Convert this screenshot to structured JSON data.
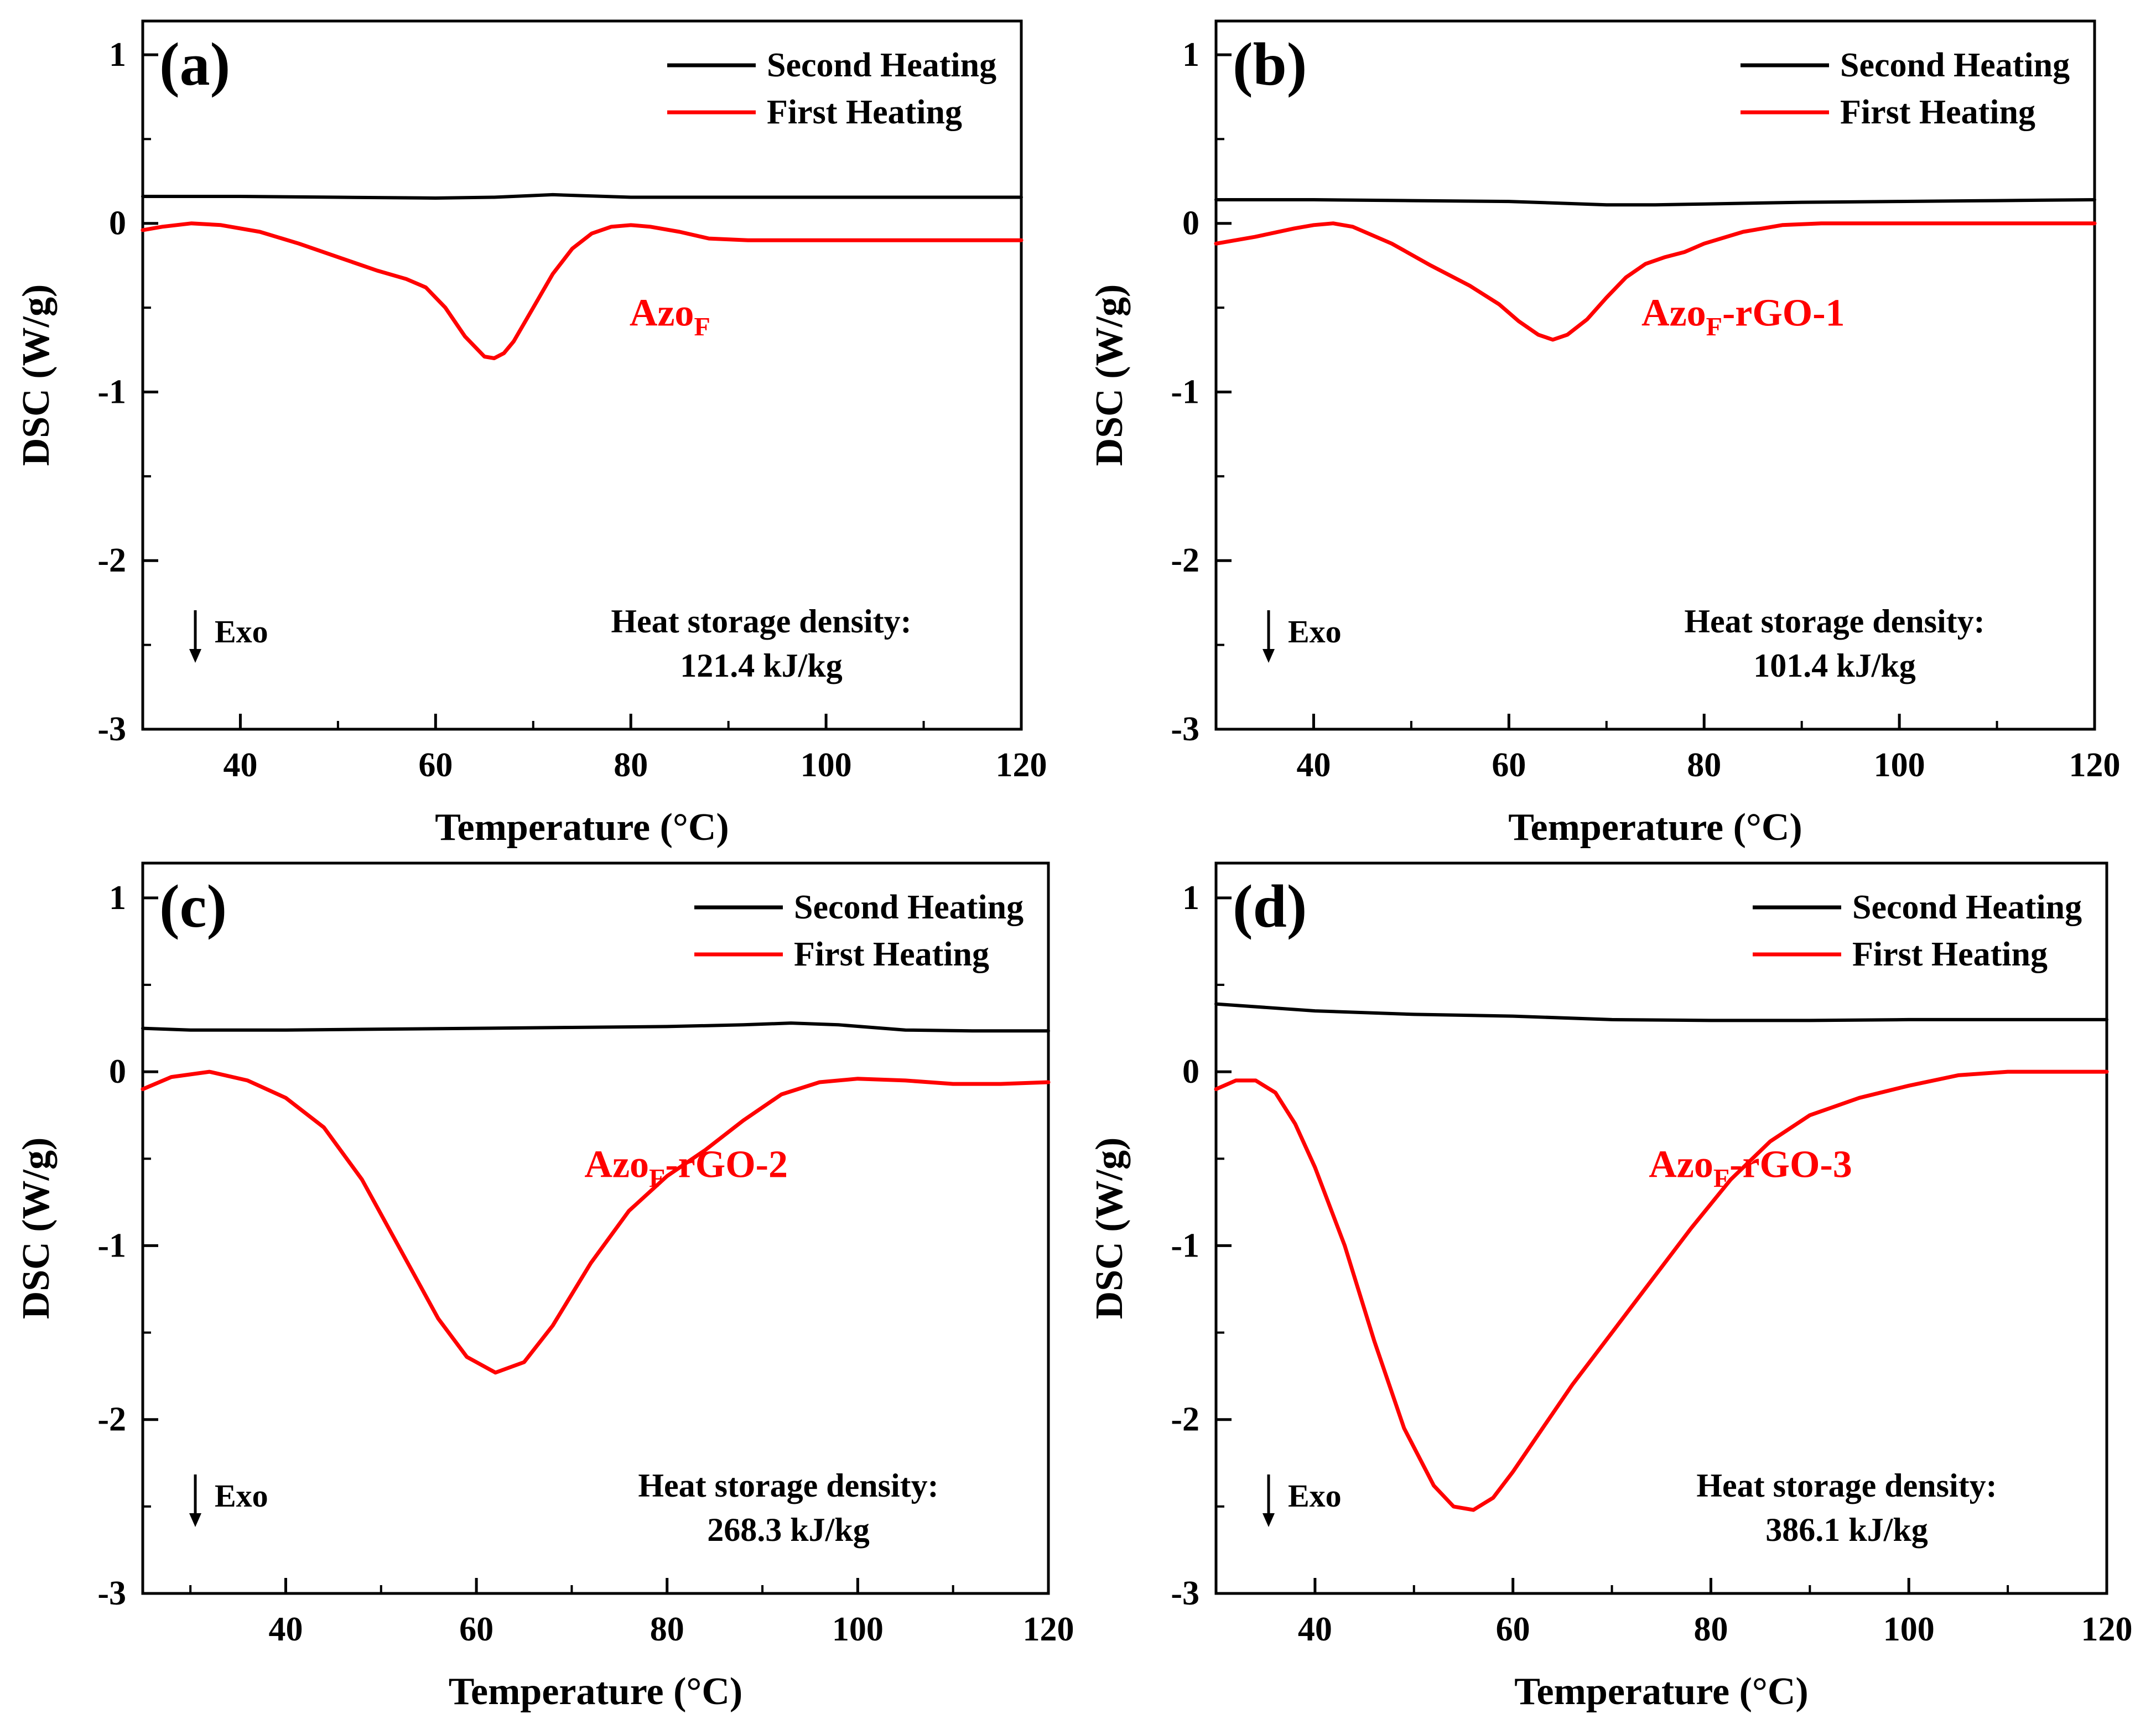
{
  "figure": {
    "description_label": "Four-panel DSC thermogram figure"
  },
  "colors": {
    "second_heating": "#000000",
    "first_heating": "#ff0000",
    "axes": "#000000",
    "sample_label": "#ff0000"
  },
  "chart_data": [
    {
      "type": "line",
      "panel": "(a)",
      "xlabel": "Temperature (°C)",
      "ylabel": "DSC (W/g)",
      "xlim": [
        30,
        120
      ],
      "ylim": [
        -3,
        1.2
      ],
      "xticks": [
        40,
        60,
        80,
        100,
        120
      ],
      "yticks": [
        1,
        0,
        -1,
        -2,
        -3
      ],
      "legend": [
        "Second Heating",
        "First Heating"
      ],
      "sample_label": {
        "base": "Azo",
        "sub": "F",
        "suffix": ""
      },
      "exo_label": "Exo",
      "annotation": {
        "line1": "Heat storage density:",
        "line2": "121.4 kJ/kg"
      },
      "series": [
        {
          "name": "Second Heating",
          "x": [
            30,
            40,
            50,
            60,
            66,
            72,
            80,
            90,
            100,
            110,
            120
          ],
          "y": [
            0.16,
            0.16,
            0.155,
            0.15,
            0.155,
            0.17,
            0.155,
            0.155,
            0.155,
            0.155,
            0.155
          ]
        },
        {
          "name": "First Heating",
          "x": [
            30,
            32,
            35,
            38,
            42,
            46,
            50,
            54,
            57,
            59,
            61,
            63,
            65,
            66,
            67,
            68,
            70,
            72,
            74,
            76,
            78,
            80,
            82,
            85,
            88,
            92,
            100,
            110,
            120
          ],
          "y": [
            -0.04,
            -0.02,
            0.0,
            -0.01,
            -0.05,
            -0.12,
            -0.2,
            -0.28,
            -0.33,
            -0.38,
            -0.5,
            -0.67,
            -0.79,
            -0.8,
            -0.77,
            -0.7,
            -0.5,
            -0.3,
            -0.15,
            -0.06,
            -0.02,
            -0.01,
            -0.02,
            -0.05,
            -0.09,
            -0.1,
            -0.1,
            -0.1,
            -0.1
          ]
        }
      ]
    },
    {
      "type": "line",
      "panel": "(b)",
      "xlabel": "Temperature (°C)",
      "ylabel": "DSC (W/g)",
      "xlim": [
        30,
        120
      ],
      "ylim": [
        -3,
        1.2
      ],
      "xticks": [
        40,
        60,
        80,
        100,
        120
      ],
      "yticks": [
        1,
        0,
        -1,
        -2,
        -3
      ],
      "legend": [
        "Second Heating",
        "First Heating"
      ],
      "sample_label": {
        "base": "Azo",
        "sub": "F",
        "suffix": "-rGO-1"
      },
      "exo_label": "Exo",
      "annotation": {
        "line1": "Heat storage density:",
        "line2": "101.4 kJ/kg"
      },
      "series": [
        {
          "name": "Second Heating",
          "x": [
            30,
            40,
            50,
            60,
            65,
            70,
            75,
            80,
            90,
            100,
            110,
            120
          ],
          "y": [
            0.14,
            0.14,
            0.135,
            0.13,
            0.12,
            0.11,
            0.11,
            0.115,
            0.125,
            0.13,
            0.135,
            0.14
          ]
        },
        {
          "name": "First Heating",
          "x": [
            30,
            34,
            38,
            40,
            42,
            44,
            48,
            52,
            56,
            59,
            61,
            63,
            64.5,
            66,
            68,
            70,
            72,
            74,
            76,
            78,
            80,
            84,
            88,
            92,
            100,
            110,
            120
          ],
          "y": [
            -0.12,
            -0.08,
            -0.03,
            -0.01,
            0.0,
            -0.02,
            -0.12,
            -0.25,
            -0.37,
            -0.48,
            -0.58,
            -0.66,
            -0.69,
            -0.66,
            -0.57,
            -0.44,
            -0.32,
            -0.24,
            -0.2,
            -0.17,
            -0.12,
            -0.05,
            -0.01,
            0.0,
            0.0,
            0.0,
            0.0
          ]
        }
      ]
    },
    {
      "type": "line",
      "panel": "(c)",
      "xlabel": "Temperature (°C)",
      "ylabel": "DSC (W/g)",
      "xlim": [
        25,
        120
      ],
      "ylim": [
        -3,
        1.2
      ],
      "xticks": [
        40,
        60,
        80,
        100,
        120
      ],
      "yticks": [
        1,
        0,
        -1,
        -2,
        -3
      ],
      "legend": [
        "Second Heating",
        "First Heating"
      ],
      "sample_label": {
        "base": "Azo",
        "sub": "F",
        "suffix": "-rGO-2"
      },
      "exo_label": "Exo",
      "annotation": {
        "line1": "Heat storage density:",
        "line2": "268.3 kJ/kg"
      },
      "series": [
        {
          "name": "Second Heating",
          "x": [
            25,
            30,
            40,
            50,
            60,
            70,
            80,
            88,
            93,
            98,
            105,
            112,
            120
          ],
          "y": [
            0.25,
            0.24,
            0.24,
            0.245,
            0.25,
            0.255,
            0.26,
            0.27,
            0.28,
            0.27,
            0.24,
            0.235,
            0.235
          ]
        },
        {
          "name": "First Heating",
          "x": [
            25,
            28,
            32,
            36,
            40,
            44,
            48,
            52,
            56,
            59,
            62,
            65,
            68,
            72,
            76,
            80,
            84,
            88,
            92,
            96,
            100,
            105,
            110,
            115,
            120
          ],
          "y": [
            -0.1,
            -0.03,
            0.0,
            -0.05,
            -0.15,
            -0.32,
            -0.62,
            -1.02,
            -1.42,
            -1.64,
            -1.73,
            -1.67,
            -1.46,
            -1.1,
            -0.8,
            -0.6,
            -0.45,
            -0.28,
            -0.13,
            -0.06,
            -0.04,
            -0.05,
            -0.07,
            -0.07,
            -0.06
          ]
        }
      ]
    },
    {
      "type": "line",
      "panel": "(d)",
      "xlabel": "Temperature (°C)",
      "ylabel": "DSC (W/g)",
      "xlim": [
        30,
        120
      ],
      "ylim": [
        -3,
        1.2
      ],
      "xticks": [
        40,
        60,
        80,
        100,
        120
      ],
      "yticks": [
        1,
        0,
        -1,
        -2,
        -3
      ],
      "legend": [
        "Second Heating",
        "First Heating"
      ],
      "sample_label": {
        "base": "Azo",
        "sub": "F",
        "suffix": "-rGO-3"
      },
      "exo_label": "Exo",
      "annotation": {
        "line1": "Heat storage density:",
        "line2": "386.1 kJ/kg"
      },
      "series": [
        {
          "name": "Second Heating",
          "x": [
            30,
            40,
            50,
            60,
            70,
            80,
            90,
            100,
            110,
            120
          ],
          "y": [
            0.39,
            0.35,
            0.33,
            0.32,
            0.3,
            0.295,
            0.295,
            0.3,
            0.3,
            0.3
          ]
        },
        {
          "name": "First Heating",
          "x": [
            30,
            32,
            34,
            36,
            38,
            40,
            43,
            46,
            49,
            52,
            54,
            56,
            58,
            60,
            63,
            66,
            70,
            74,
            78,
            82,
            86,
            90,
            95,
            100,
            105,
            110,
            115,
            120
          ],
          "y": [
            -0.1,
            -0.05,
            -0.05,
            -0.12,
            -0.3,
            -0.55,
            -1.0,
            -1.55,
            -2.05,
            -2.38,
            -2.5,
            -2.52,
            -2.45,
            -2.3,
            -2.05,
            -1.8,
            -1.5,
            -1.2,
            -0.9,
            -0.62,
            -0.4,
            -0.25,
            -0.15,
            -0.08,
            -0.02,
            0.0,
            0.0,
            0.0
          ]
        }
      ]
    }
  ]
}
